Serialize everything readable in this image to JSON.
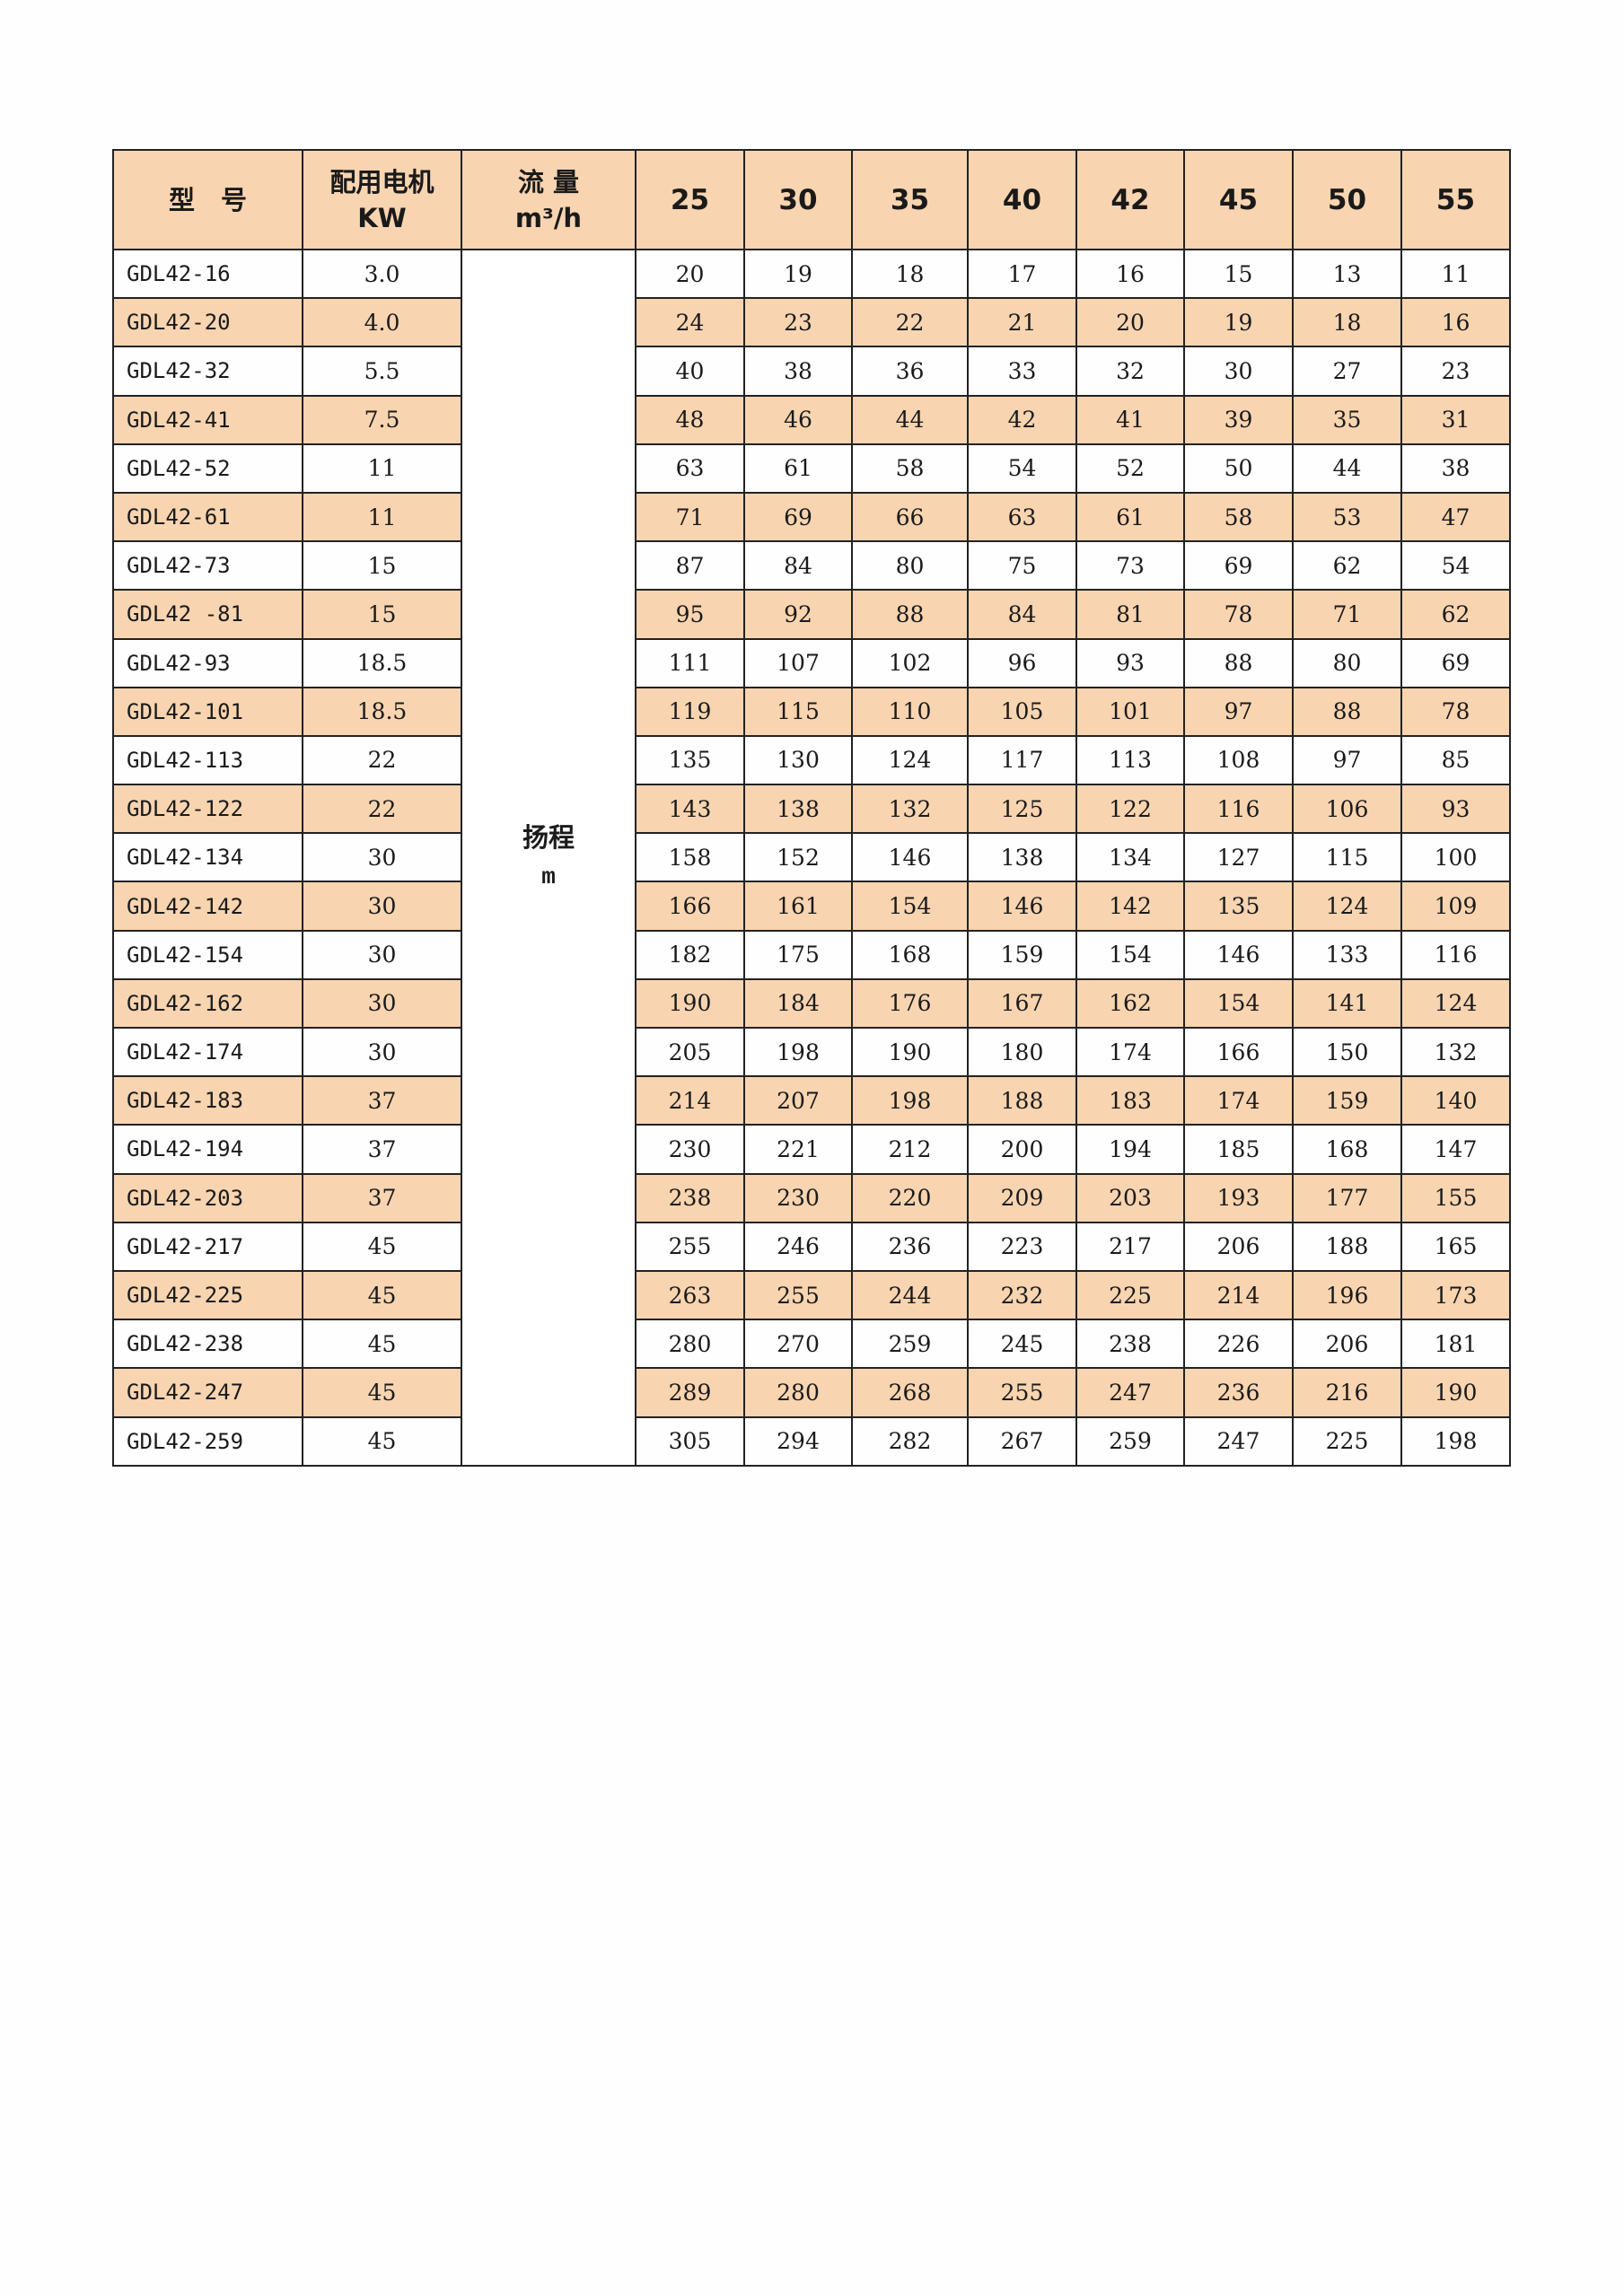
{
  "table": {
    "header": {
      "model": "型　号",
      "motor_line1": "配用电机",
      "motor_line2": "KW",
      "flow_line1": "流 量",
      "flow_line2": "m³/h",
      "flows": [
        "25",
        "30",
        "35",
        "40",
        "42",
        "45",
        "50",
        "55"
      ]
    },
    "head_label": {
      "line1": "扬程",
      "line2": "m"
    },
    "shade_color": "#f8d4b0",
    "rows": [
      {
        "model": "GDL42-16",
        "kw": "3.0",
        "heads": [
          "20",
          "19",
          "18",
          "17",
          "16",
          "15",
          "13",
          "11"
        ]
      },
      {
        "model": "GDL42-20",
        "kw": "4.0",
        "heads": [
          "24",
          "23",
          "22",
          "21",
          "20",
          "19",
          "18",
          "16"
        ]
      },
      {
        "model": "GDL42-32",
        "kw": "5.5",
        "heads": [
          "40",
          "38",
          "36",
          "33",
          "32",
          "30",
          "27",
          "23"
        ]
      },
      {
        "model": "GDL42-41",
        "kw": "7.5",
        "heads": [
          "48",
          "46",
          "44",
          "42",
          "41",
          "39",
          "35",
          "31"
        ]
      },
      {
        "model": "GDL42-52",
        "kw": "11",
        "heads": [
          "63",
          "61",
          "58",
          "54",
          "52",
          "50",
          "44",
          "38"
        ]
      },
      {
        "model": "GDL42-61",
        "kw": "11",
        "heads": [
          "71",
          "69",
          "66",
          "63",
          "61",
          "58",
          "53",
          "47"
        ]
      },
      {
        "model": "GDL42-73",
        "kw": "15",
        "heads": [
          "87",
          "84",
          "80",
          "75",
          "73",
          "69",
          "62",
          "54"
        ]
      },
      {
        "model": "GDL42 -81",
        "kw": "15",
        "heads": [
          "95",
          "92",
          "88",
          "84",
          "81",
          "78",
          "71",
          "62"
        ]
      },
      {
        "model": "GDL42-93",
        "kw": "18.5",
        "heads": [
          "111",
          "107",
          "102",
          "96",
          "93",
          "88",
          "80",
          "69"
        ]
      },
      {
        "model": "GDL42-101",
        "kw": "18.5",
        "heads": [
          "119",
          "115",
          "110",
          "105",
          "101",
          "97",
          "88",
          "78"
        ]
      },
      {
        "model": "GDL42-113",
        "kw": "22",
        "heads": [
          "135",
          "130",
          "124",
          "117",
          "113",
          "108",
          "97",
          "85"
        ]
      },
      {
        "model": "GDL42-122",
        "kw": "22",
        "heads": [
          "143",
          "138",
          "132",
          "125",
          "122",
          "116",
          "106",
          "93"
        ]
      },
      {
        "model": "GDL42-134",
        "kw": "30",
        "heads": [
          "158",
          "152",
          "146",
          "138",
          "134",
          "127",
          "115",
          "100"
        ]
      },
      {
        "model": "GDL42-142",
        "kw": "30",
        "heads": [
          "166",
          "161",
          "154",
          "146",
          "142",
          "135",
          "124",
          "109"
        ]
      },
      {
        "model": "GDL42-154",
        "kw": "30",
        "heads": [
          "182",
          "175",
          "168",
          "159",
          "154",
          "146",
          "133",
          "116"
        ]
      },
      {
        "model": "GDL42-162",
        "kw": "30",
        "heads": [
          "190",
          "184",
          "176",
          "167",
          "162",
          "154",
          "141",
          "124"
        ]
      },
      {
        "model": "GDL42-174",
        "kw": "30",
        "heads": [
          "205",
          "198",
          "190",
          "180",
          "174",
          "166",
          "150",
          "132"
        ]
      },
      {
        "model": "GDL42-183",
        "kw": "37",
        "heads": [
          "214",
          "207",
          "198",
          "188",
          "183",
          "174",
          "159",
          "140"
        ]
      },
      {
        "model": "GDL42-194",
        "kw": "37",
        "heads": [
          "230",
          "221",
          "212",
          "200",
          "194",
          "185",
          "168",
          "147"
        ]
      },
      {
        "model": "GDL42-203",
        "kw": "37",
        "heads": [
          "238",
          "230",
          "220",
          "209",
          "203",
          "193",
          "177",
          "155"
        ]
      },
      {
        "model": "GDL42-217",
        "kw": "45",
        "heads": [
          "255",
          "246",
          "236",
          "223",
          "217",
          "206",
          "188",
          "165"
        ]
      },
      {
        "model": "GDL42-225",
        "kw": "45",
        "heads": [
          "263",
          "255",
          "244",
          "232",
          "225",
          "214",
          "196",
          "173"
        ]
      },
      {
        "model": "GDL42-238",
        "kw": "45",
        "heads": [
          "280",
          "270",
          "259",
          "245",
          "238",
          "226",
          "206",
          "181"
        ]
      },
      {
        "model": "GDL42-247",
        "kw": "45",
        "heads": [
          "289",
          "280",
          "268",
          "255",
          "247",
          "236",
          "216",
          "190"
        ]
      },
      {
        "model": "GDL42-259",
        "kw": "45",
        "heads": [
          "305",
          "294",
          "282",
          "267",
          "259",
          "247",
          "225",
          "198"
        ]
      }
    ]
  }
}
